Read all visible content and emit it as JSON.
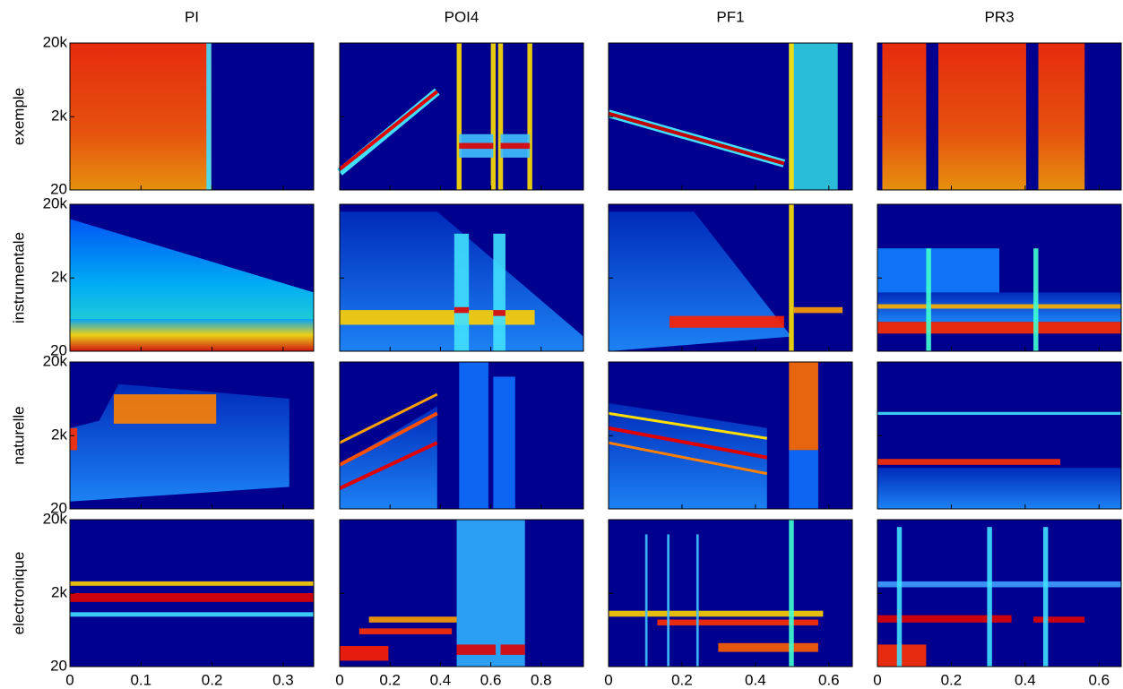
{
  "chart_data": {
    "type": "spectrogram-grid",
    "yscale": "erb",
    "ylim": [
      20,
      20000
    ],
    "yticks": [
      20,
      {
        "value": 2000,
        "label": "2k"
      },
      {
        "value": 20000,
        "label": "20k"
      }
    ],
    "rows": [
      "exemple",
      "instrumentale",
      "naturelle",
      "electronique"
    ],
    "columns": [
      {
        "title": "PI",
        "xlim": [
          0,
          0.343
        ],
        "xticks": [
          0,
          0.1,
          0.2,
          0.3
        ]
      },
      {
        "title": "POI4",
        "xlim": [
          0,
          0.968
        ],
        "xticks": [
          0,
          0.2,
          0.4,
          0.6,
          0.8
        ]
      },
      {
        "title": "PF1",
        "xlim": [
          0,
          0.664
        ],
        "xticks": [
          0,
          0.2,
          0.4,
          0.6
        ]
      },
      {
        "title": "PR3",
        "xlim": [
          0,
          0.66
        ],
        "xticks": [
          0,
          0.2,
          0.4,
          0.6
        ]
      }
    ]
  }
}
